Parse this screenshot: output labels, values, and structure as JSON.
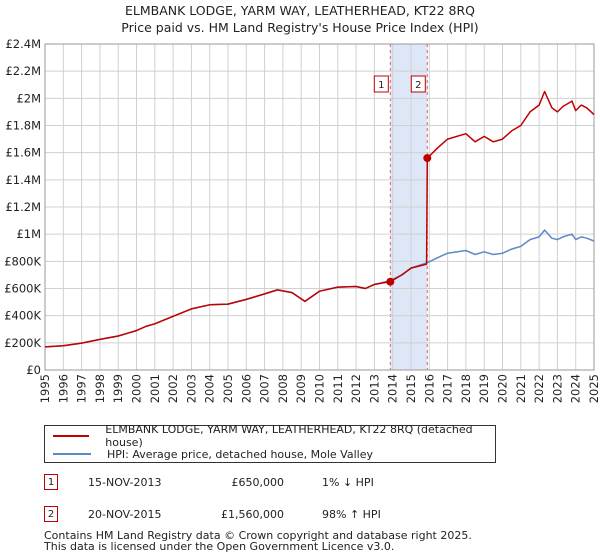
{
  "title_line1": "ELMBANK LODGE, YARM WAY, LEATHERHEAD, KT22 8RQ",
  "title_line2": "Price paid vs. HM Land Registry's House Price Index (HPI)",
  "legend": {
    "property_label": "ELMBANK LODGE, YARM WAY, LEATHERHEAD, KT22 8RQ (detached house)",
    "hpi_label": "HPI: Average price, detached house, Mole Valley"
  },
  "transactions": [
    {
      "num": "1",
      "date": "15-NOV-2013",
      "price": "£650,000",
      "hpi": "1% ↓ HPI"
    },
    {
      "num": "2",
      "date": "20-NOV-2015",
      "price": "£1,560,000",
      "hpi": "98% ↑ HPI"
    }
  ],
  "footer_line1": "Contains HM Land Registry data © Crown copyright and database right 2025.",
  "footer_line2": "This data is licensed under the Open Government Licence v3.0.",
  "colors": {
    "property": "#c00000",
    "hpi": "#5b8ac9",
    "shade": "#dde7f7",
    "grid": "#d0d0d0"
  },
  "chart_data": {
    "type": "line",
    "xlim": [
      1995,
      2025
    ],
    "ylim": [
      0,
      2400000
    ],
    "x_ticks": [
      "1995",
      "1996",
      "1997",
      "1998",
      "1999",
      "2000",
      "2001",
      "2002",
      "2003",
      "2004",
      "2005",
      "2006",
      "2007",
      "2008",
      "2009",
      "2010",
      "2011",
      "2012",
      "2013",
      "2014",
      "2015",
      "2016",
      "2017",
      "2018",
      "2019",
      "2020",
      "2021",
      "2022",
      "2023",
      "2024",
      "2025"
    ],
    "y_ticks": [
      {
        "v": 0,
        "label": "£0"
      },
      {
        "v": 200000,
        "label": "£200K"
      },
      {
        "v": 400000,
        "label": "£400K"
      },
      {
        "v": 600000,
        "label": "£600K"
      },
      {
        "v": 800000,
        "label": "£800K"
      },
      {
        "v": 1000000,
        "label": "£1M"
      },
      {
        "v": 1200000,
        "label": "£1.2M"
      },
      {
        "v": 1400000,
        "label": "£1.4M"
      },
      {
        "v": 1600000,
        "label": "£1.6M"
      },
      {
        "v": 1800000,
        "label": "£1.8M"
      },
      {
        "v": 2000000,
        "label": "£2M"
      },
      {
        "v": 2200000,
        "label": "£2.2M"
      },
      {
        "v": 2400000,
        "label": "£2.4M"
      }
    ],
    "grid": true,
    "shaded_region": [
      2013.87,
      2015.89
    ],
    "markers": [
      {
        "label": "1",
        "x": 2013.87,
        "y": 650000
      },
      {
        "label": "2",
        "x": 2015.89,
        "y": 1560000
      }
    ],
    "series": [
      {
        "name": "ELMBANK LODGE, YARM WAY, LEATHERHEAD, KT22 8RQ (detached house)",
        "x": [
          1995,
          1996,
          1997,
          1998,
          1999,
          2000,
          2000.5,
          2001,
          2002,
          2003,
          2004,
          2005,
          2006,
          2007,
          2007.7,
          2008.5,
          2009.2,
          2010,
          2011,
          2012,
          2012.5,
          2013,
          2013.87,
          2014.5,
          2015,
          2015.85,
          2015.89,
          2016.5,
          2017,
          2018,
          2018.5,
          2019,
          2019.5,
          2020,
          2020.5,
          2021,
          2021.5,
          2022,
          2022.3,
          2022.7,
          2023,
          2023.3,
          2023.8,
          2024,
          2024.3,
          2024.6,
          2025
        ],
        "y": [
          170000,
          178000,
          198000,
          225000,
          250000,
          290000,
          320000,
          340000,
          395000,
          450000,
          480000,
          485000,
          520000,
          560000,
          590000,
          570000,
          505000,
          580000,
          610000,
          615000,
          600000,
          630000,
          650000,
          700000,
          750000,
          780000,
          1560000,
          1640000,
          1700000,
          1740000,
          1680000,
          1720000,
          1680000,
          1700000,
          1760000,
          1800000,
          1900000,
          1950000,
          2050000,
          1930000,
          1900000,
          1940000,
          1980000,
          1910000,
          1950000,
          1930000,
          1880000
        ]
      },
      {
        "name": "HPI: Average price, detached house, Mole Valley",
        "x": [
          1995,
          1996,
          1997,
          1998,
          1999,
          2000,
          2000.5,
          2001,
          2002,
          2003,
          2004,
          2005,
          2006,
          2007,
          2007.7,
          2008.5,
          2009.2,
          2010,
          2011,
          2012,
          2012.5,
          2013,
          2013.87,
          2014.5,
          2015,
          2015.89,
          2016.5,
          2017,
          2018,
          2018.5,
          2019,
          2019.5,
          2020,
          2020.5,
          2021,
          2021.5,
          2022,
          2022.3,
          2022.7,
          2023,
          2023.3,
          2023.8,
          2024,
          2024.3,
          2024.6,
          2025
        ],
        "y": [
          170000,
          178000,
          198000,
          225000,
          250000,
          290000,
          320000,
          340000,
          395000,
          450000,
          480000,
          485000,
          520000,
          560000,
          590000,
          570000,
          505000,
          580000,
          610000,
          615000,
          600000,
          630000,
          658000,
          700000,
          750000,
          790000,
          830000,
          860000,
          880000,
          850000,
          870000,
          850000,
          860000,
          890000,
          910000,
          960000,
          980000,
          1030000,
          970000,
          960000,
          980000,
          1000000,
          960000,
          980000,
          970000,
          950000
        ]
      }
    ]
  }
}
